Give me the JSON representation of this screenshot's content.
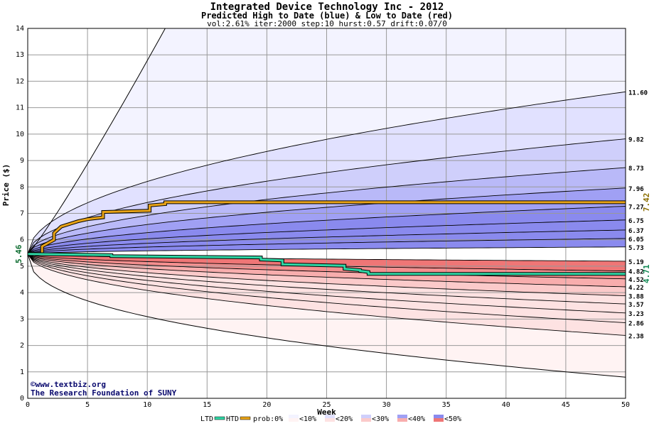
{
  "chart_data": {
    "type": "area",
    "title": "Integrated Device Technology Inc - 2012",
    "subtitle": "Predicted High to Date (blue) &  Low to Date (red)",
    "params": "vol:2.61% iter:2000 step:10 hurst:0.57 drift:0.07/0",
    "xlabel": "Week",
    "ylabel": "Price ($)",
    "xlim": [
      0,
      50
    ],
    "ylim": [
      0,
      14
    ],
    "xticks": [
      0,
      5,
      10,
      15,
      20,
      25,
      30,
      35,
      40,
      45,
      50
    ],
    "yticks": [
      0,
      1,
      2,
      3,
      4,
      5,
      6,
      7,
      8,
      9,
      10,
      11,
      12,
      13,
      14
    ],
    "grid": true,
    "start_price": "5.46",
    "start_value": 5.46,
    "right_labels": [
      "11.60",
      "9.82",
      "8.73",
      "7.96",
      "7.27",
      "6.75",
      "6.37",
      "6.05",
      "5.73",
      "5.19",
      "4.82",
      "4.52",
      "4.22",
      "3.88",
      "3.57",
      "3.23",
      "2.86",
      "2.38"
    ],
    "right_values": [
      11.6,
      9.82,
      8.73,
      7.96,
      7.27,
      6.75,
      6.37,
      6.05,
      5.73,
      5.19,
      4.82,
      4.52,
      4.22,
      3.88,
      3.57,
      3.23,
      2.86,
      2.38
    ],
    "upper_extreme_end": 14,
    "upper_extreme_reach_week": 11.5,
    "lower_extreme_end": 0.8,
    "htd_label": "7.42",
    "ltd_label": "4.71",
    "htd_series": {
      "name": "HTD",
      "x": [
        0,
        1.2,
        1.2,
        2.2,
        2.2,
        2.8,
        3.5,
        4.2,
        5.0,
        6.3,
        6.3,
        10.2,
        10.2,
        11.5,
        11.5,
        50
      ],
      "y": [
        5.46,
        5.46,
        5.75,
        6.0,
        6.25,
        6.5,
        6.6,
        6.7,
        6.78,
        6.85,
        7.05,
        7.1,
        7.3,
        7.35,
        7.42,
        7.42
      ]
    },
    "ltd_series": {
      "name": "LTD",
      "x": [
        0,
        7,
        7,
        19.5,
        19.5,
        21.3,
        21.3,
        26.5,
        26.5,
        27.8,
        27.8,
        28.5,
        28.5,
        50
      ],
      "y": [
        5.46,
        5.42,
        5.38,
        5.33,
        5.25,
        5.22,
        5.07,
        5.02,
        4.9,
        4.85,
        4.82,
        4.78,
        4.71,
        4.71
      ]
    },
    "legend": [
      "LTD",
      "HTD",
      "prob:0%",
      "<10%",
      "<20%",
      "<30%",
      "<40%",
      "<50%"
    ],
    "colors": {
      "htd": "#e8a317",
      "ltd": "#2fd6a4",
      "upper_bands": [
        "#f3f3ff",
        "#e1e1ff",
        "#cfcffb",
        "#b9b9f8",
        "#a0a0f4",
        "#8a8aee"
      ],
      "lower_bands": [
        "#fff3f3",
        "#fde2e2",
        "#fbcaca",
        "#f8adad",
        "#f48f8f",
        "#ef7676"
      ],
      "start_label": "#0b6b2e",
      "htd_label": "#8a6d00",
      "ltd_label": "#158a56",
      "credit": "#0a0a6e"
    }
  },
  "credits": {
    "line1": "www.textbiz.org",
    "line2": "The Research Foundation of SUNY"
  }
}
